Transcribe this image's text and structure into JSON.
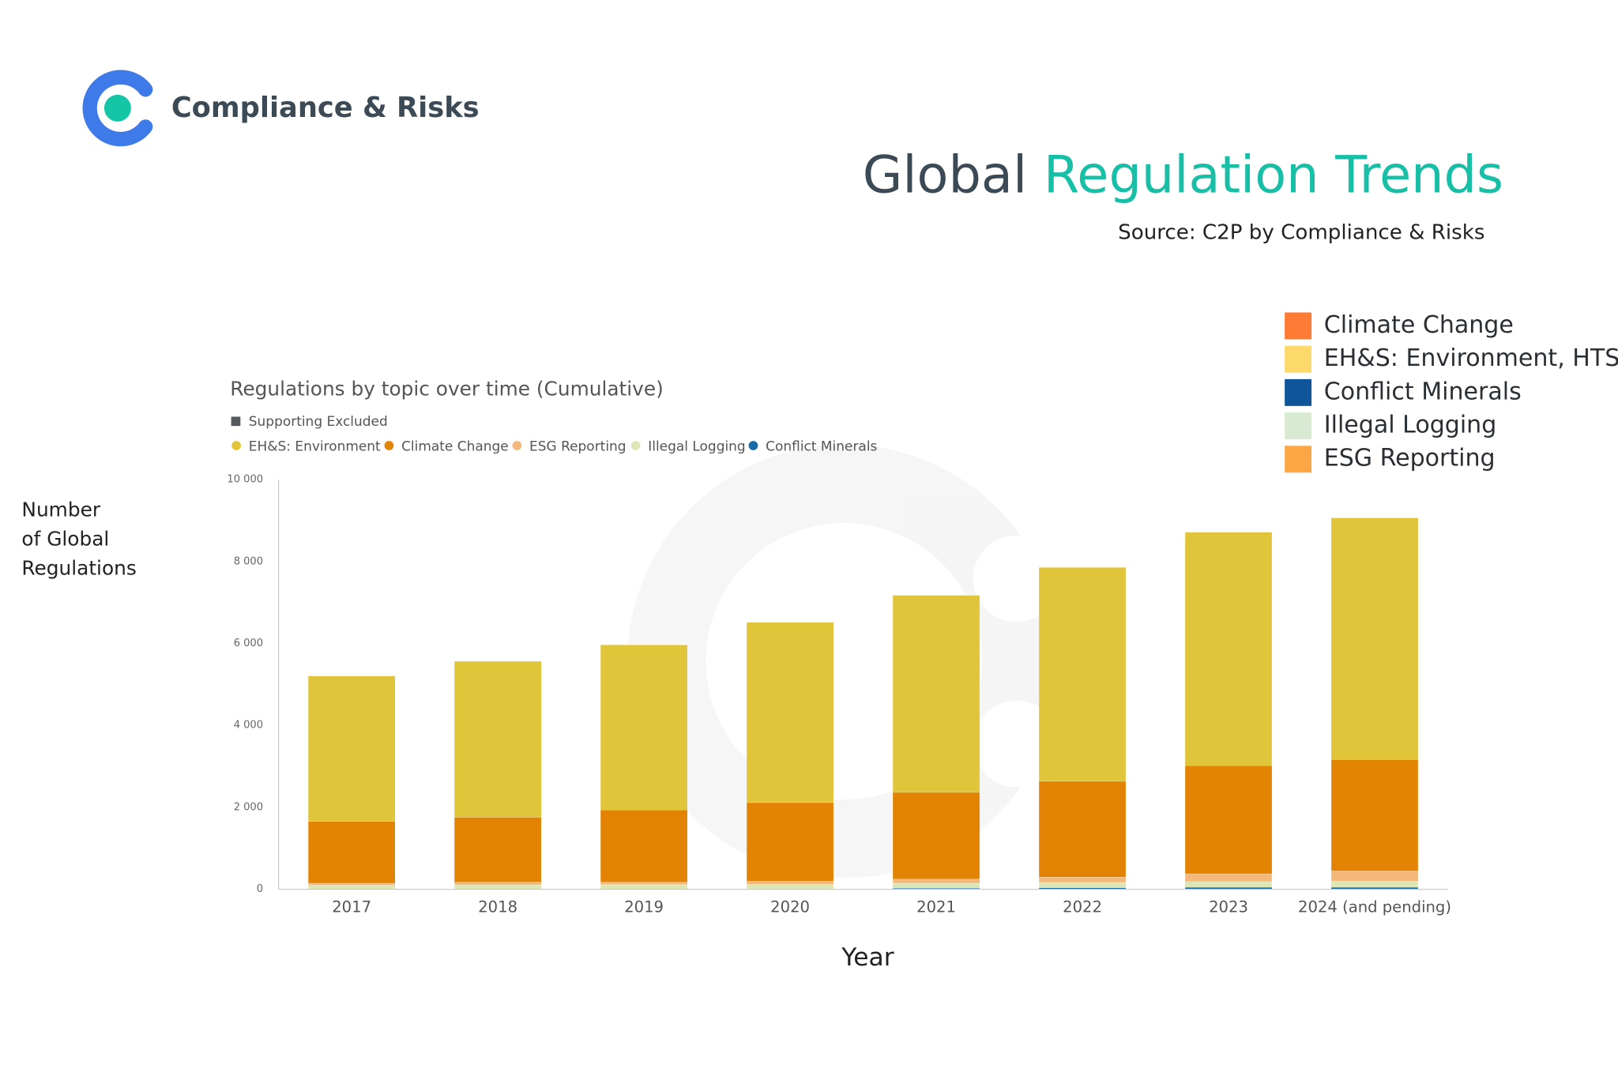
{
  "brand": "Compliance & Risks",
  "headline": {
    "lead": "Global",
    "accent": "Regulation Trends"
  },
  "source": "Source: C2P by Compliance & Risks",
  "outer_legend": [
    {
      "label": "Climate Change",
      "color": "#fd7b35"
    },
    {
      "label": "EH&S: Environment, HTS",
      "color": "#fdd86b"
    },
    {
      "label": "Conflict Minerals",
      "color": "#0f5599"
    },
    {
      "label": "Illegal Logging",
      "color": "#d9ead3"
    },
    {
      "label": "ESG Reporting",
      "color": "#fca745"
    }
  ],
  "chart_data": {
    "type": "stacked_bar",
    "title": "Regulations by topic over time (Cumulative)",
    "excluded_legend": {
      "label": "Supporting Excluded",
      "color": "#555a5e"
    },
    "ylabel": [
      "Number",
      "of Global",
      "Regulations"
    ],
    "xlabel": "Year",
    "categories": [
      "2017",
      "2018",
      "2019",
      "2020",
      "2021",
      "2022",
      "2023",
      "2024 (and pending)"
    ],
    "legend_order": [
      4,
      3,
      2,
      1,
      0
    ],
    "series": [
      {
        "name": "Conflict Minerals",
        "color": "#1a6aa6",
        "values": [
          10,
          10,
          10,
          15,
          30,
          40,
          50,
          50
        ]
      },
      {
        "name": "Illegal Logging",
        "color": "#dfe6b6",
        "values": [
          90,
          100,
          110,
          110,
          120,
          130,
          140,
          150
        ]
      },
      {
        "name": "ESG Reporting",
        "color": "#f4b97a",
        "values": [
          50,
          65,
          55,
          75,
          100,
          130,
          190,
          250
        ]
      },
      {
        "name": "Climate Change",
        "color": "#e38303",
        "values": [
          1510,
          1585,
          1765,
          1920,
          2120,
          2340,
          2640,
          2720
        ]
      },
      {
        "name": "EH&S: Environment",
        "color": "#e0c43a",
        "values": [
          3550,
          3810,
          4030,
          4400,
          4810,
          5220,
          5700,
          5900
        ]
      }
    ],
    "ylim": [
      0,
      10000
    ],
    "yticks": [
      0,
      {
        "value": 2000,
        "label": "2 000"
      },
      {
        "value": 4000,
        "label": "4 000"
      },
      {
        "value": 6000,
        "label": "6 000"
      },
      {
        "value": 8000,
        "label": "8 000"
      },
      {
        "value": 10000,
        "label": "10 000"
      }
    ],
    "grid": false
  }
}
